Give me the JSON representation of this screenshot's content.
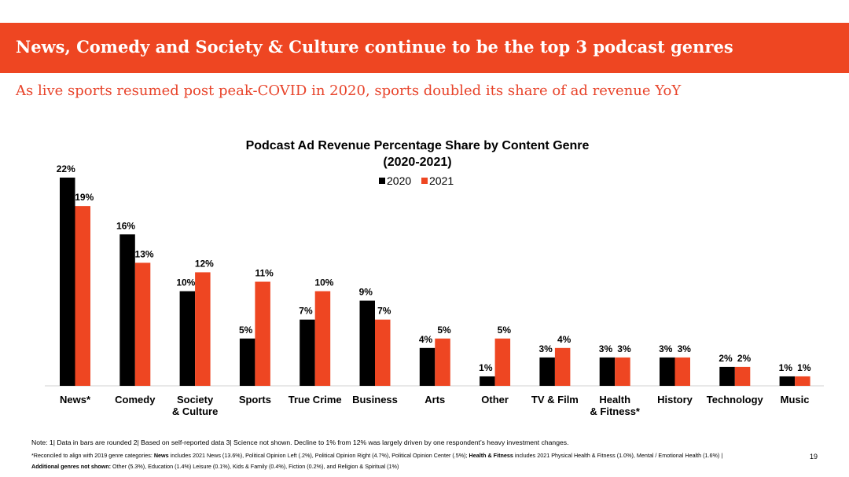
{
  "header": {
    "title": "News, Comedy and Society & Culture continue to be the top 3 podcast genres",
    "subtitle": "As live sports resumed post peak-COVID in 2020, sports doubled its share of ad revenue YoY"
  },
  "chart_data": {
    "type": "bar",
    "title": "Podcast Ad Revenue Percentage Share by Content Genre",
    "subtitle": "(2020-2021)",
    "legend_position": "top-center",
    "grid": false,
    "ylim": [
      0,
      22
    ],
    "categories": [
      [
        "News*"
      ],
      [
        "Comedy"
      ],
      [
        "Society",
        "& Culture"
      ],
      [
        "Sports"
      ],
      [
        "True Crime"
      ],
      [
        "Business"
      ],
      [
        "Arts"
      ],
      [
        "Other"
      ],
      [
        "TV & Film"
      ],
      [
        "Health",
        "& Fitness*"
      ],
      [
        "History"
      ],
      [
        "Technology"
      ],
      [
        "Music"
      ]
    ],
    "series": [
      {
        "name": "2020",
        "color": "#000000",
        "values": [
          22,
          16,
          10,
          5,
          7,
          9,
          4,
          1,
          3,
          3,
          3,
          2,
          1
        ],
        "labels": [
          "22%",
          "16%",
          "10%",
          "5%",
          "7%",
          "9%",
          "4%",
          "1%",
          "3%",
          "3%",
          "3%",
          "2%",
          "1%"
        ]
      },
      {
        "name": "2021",
        "color": "#ee4622",
        "values": [
          19,
          13,
          12,
          11,
          10,
          7,
          5,
          5,
          4,
          3,
          3,
          2,
          1
        ],
        "labels": [
          "19%",
          "13%",
          "12%",
          "11%",
          "10%",
          "7%",
          "5%",
          "5%",
          "4%",
          "3%",
          "3%",
          "2%",
          "1%"
        ]
      }
    ]
  },
  "footer": {
    "note1": "Note: 1| Data in bars are rounded 2| Based on self-reported data 3| Science not shown. Decline to 1% from 12% was largely driven by one respondent’s heavy investment changes.",
    "note2_a": "*Reconciled to align with 2019 genre categories: ",
    "note2_b": "News",
    "note2_c": " includes 2021 News (13.6%), Political Opinion Left (.2%), Political Opinion Right (4.7%), Political Opinion Center (.5%); ",
    "note2_d": "Health & Fitness",
    "note2_e": " includes 2021 Physical Health & Fitness (1.0%), Mental / Emotional Health (1.6%)  |",
    "note3_a": "Additional genres not shown:",
    "note3_b": " Other (5.3%), Education (1.4%) Leisure (0.1%), Kids & Family (0.4%), Fiction (0.2%), and Religion & Spiritual (1%)",
    "page_number": "19"
  }
}
